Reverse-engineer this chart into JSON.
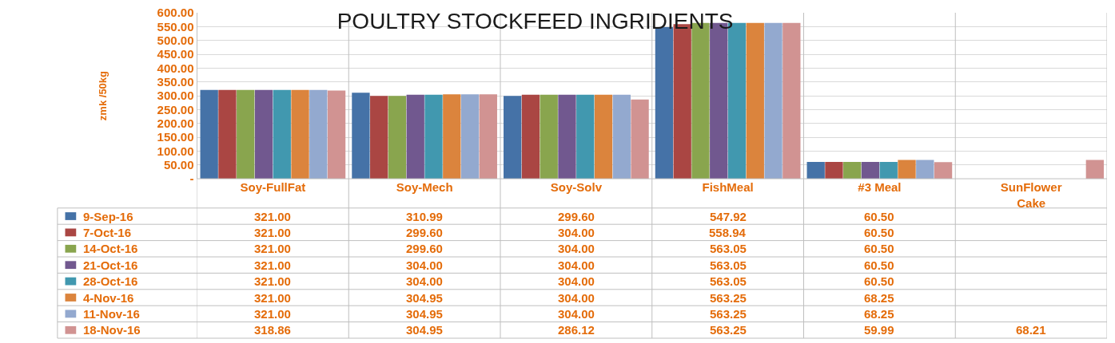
{
  "chart_data": {
    "type": "bar",
    "title": "POULTRY STOCKFEED INGRIDIENTS",
    "ylabel": "zmk /50kg",
    "categories": [
      "Soy-FullFat",
      "Soy-Mech",
      "Soy-Solv",
      "FishMeal",
      "#3 Meal",
      "SunFlower\nCake"
    ],
    "ylim": [
      0,
      600
    ],
    "yticks": [
      {
        "value": 0,
        "label": "-"
      },
      {
        "value": 50,
        "label": "50.00"
      },
      {
        "value": 100,
        "label": "100.00"
      },
      {
        "value": 150,
        "label": "150.00"
      },
      {
        "value": 200,
        "label": "200.00"
      },
      {
        "value": 250,
        "label": "250.00"
      },
      {
        "value": 300,
        "label": "300.00"
      },
      {
        "value": 350,
        "label": "350.00"
      },
      {
        "value": 400,
        "label": "400.00"
      },
      {
        "value": 450,
        "label": "450.00"
      },
      {
        "value": 500,
        "label": "500.00"
      },
      {
        "value": 550,
        "label": "550.00"
      },
      {
        "value": 600,
        "label": "600.00"
      }
    ],
    "grid": "y",
    "legend": "bottom left",
    "series": [
      {
        "name": "9-Sep-16",
        "color": "#4572a7",
        "values": [
          321.0,
          310.99,
          299.6,
          547.92,
          60.5,
          null
        ],
        "value_labels": [
          "321.00",
          "310.99",
          "299.60",
          "547.92",
          "60.50",
          null
        ]
      },
      {
        "name": "7-Oct-16",
        "color": "#aa4643",
        "values": [
          321.0,
          299.6,
          304.0,
          558.94,
          60.5,
          null
        ],
        "value_labels": [
          "321.00",
          "299.60",
          "304.00",
          "558.94",
          "60.50",
          null
        ]
      },
      {
        "name": "14-Oct-16",
        "color": "#89a54e",
        "values": [
          321.0,
          299.6,
          304.0,
          563.05,
          60.5,
          null
        ],
        "value_labels": [
          "321.00",
          "299.60",
          "304.00",
          "563.05",
          "60.50",
          null
        ]
      },
      {
        "name": "21-Oct-16",
        "color": "#71588f",
        "values": [
          321.0,
          304.0,
          304.0,
          563.05,
          60.5,
          null
        ],
        "value_labels": [
          "321.00",
          "304.00",
          "304.00",
          "563.05",
          "60.50",
          null
        ]
      },
      {
        "name": "28-Oct-16",
        "color": "#4198af",
        "values": [
          321.0,
          304.0,
          304.0,
          563.05,
          60.5,
          null
        ],
        "value_labels": [
          "321.00",
          "304.00",
          "304.00",
          "563.05",
          "60.50",
          null
        ]
      },
      {
        "name": "4-Nov-16",
        "color": "#db843d",
        "values": [
          321.0,
          304.95,
          304.0,
          563.25,
          68.25,
          null
        ],
        "value_labels": [
          "321.00",
          "304.95",
          "304.00",
          "563.25",
          "68.25",
          null
        ]
      },
      {
        "name": "11-Nov-16",
        "color": "#93a9cf",
        "values": [
          321.0,
          304.95,
          304.0,
          563.25,
          68.25,
          null
        ],
        "value_labels": [
          "321.00",
          "304.95",
          "304.00",
          "563.25",
          "68.25",
          null
        ]
      },
      {
        "name": "18-Nov-16",
        "color": "#d19392",
        "values": [
          318.86,
          304.95,
          286.12,
          563.25,
          59.99,
          68.21
        ],
        "value_labels": [
          "318.86",
          "304.95",
          "286.12",
          "563.25",
          "59.99",
          "68.21"
        ]
      }
    ]
  }
}
